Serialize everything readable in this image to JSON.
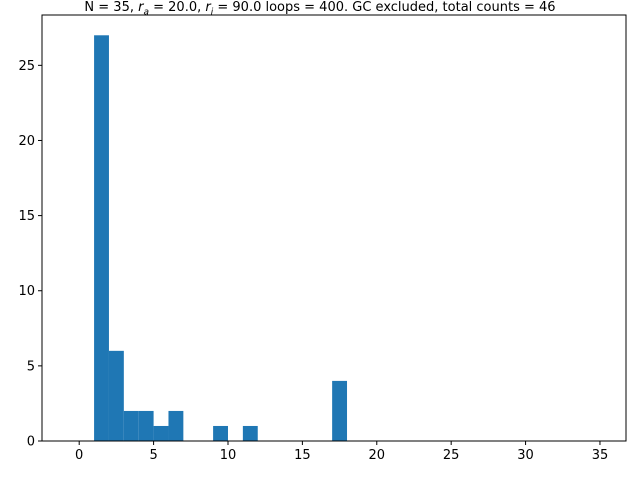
{
  "chart_data": {
    "type": "bar",
    "title": {
      "prefix": "N = 35, ",
      "ra_symbol": "r",
      "ra_sub": "a",
      "ra_text": " = 20.0, ",
      "ri_symbol": "r",
      "ri_sub": "i",
      "ri_text": " = 90.0 loops = 400. GC excluded, total counts = 46"
    },
    "xlabel": "",
    "ylabel": "",
    "xlim": [
      -2.5,
      36.75
    ],
    "ylim": [
      0,
      28.35
    ],
    "xticks": [
      0,
      5,
      10,
      15,
      20,
      25,
      30,
      35
    ],
    "yticks": [
      0,
      5,
      10,
      15,
      20,
      25
    ],
    "bin_width": 1,
    "bins": [
      {
        "x": 1,
        "value": 27
      },
      {
        "x": 2,
        "value": 6
      },
      {
        "x": 3,
        "value": 2
      },
      {
        "x": 4,
        "value": 2
      },
      {
        "x": 5,
        "value": 1
      },
      {
        "x": 6,
        "value": 2
      },
      {
        "x": 9,
        "value": 1
      },
      {
        "x": 11,
        "value": 1
      },
      {
        "x": 17,
        "value": 4
      }
    ],
    "bar_color": "#1f77b4",
    "grid": false
  }
}
